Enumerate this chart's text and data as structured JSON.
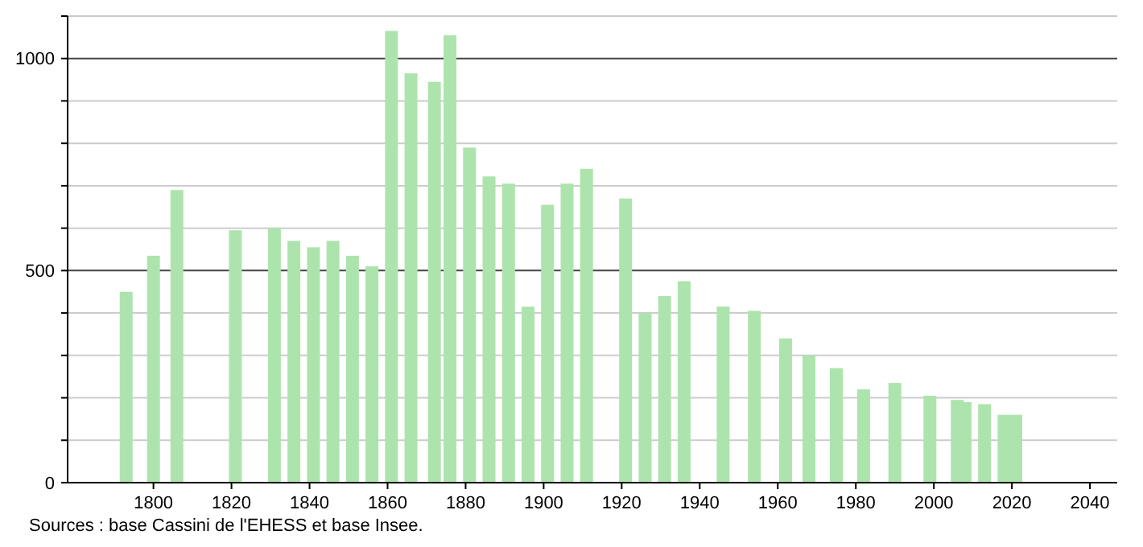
{
  "chart_data": {
    "type": "bar",
    "x": [
      1793,
      1800,
      1806,
      1821,
      1831,
      1836,
      1841,
      1846,
      1851,
      1856,
      1861,
      1866,
      1872,
      1876,
      1881,
      1886,
      1891,
      1896,
      1901,
      1906,
      1911,
      1921,
      1926,
      1931,
      1936,
      1946,
      1954,
      1962,
      1968,
      1975,
      1982,
      1990,
      1999,
      2006,
      2008,
      2013,
      2018,
      2021
    ],
    "values": [
      450,
      535,
      690,
      595,
      600,
      570,
      555,
      570,
      535,
      510,
      1065,
      965,
      945,
      1055,
      790,
      722,
      705,
      415,
      655,
      705,
      740,
      670,
      400,
      440,
      475,
      415,
      405,
      340,
      300,
      270,
      220,
      235,
      205,
      195,
      190,
      185,
      160,
      160
    ],
    "color": "#ade4ad",
    "xlim": [
      1778,
      2047
    ],
    "xticks": [
      1800,
      1820,
      1840,
      1860,
      1880,
      1900,
      1920,
      1940,
      1960,
      1980,
      2000,
      2020,
      2040
    ],
    "ylim": [
      0,
      1100
    ],
    "yticks": [
      0,
      {
        "value": 100,
        "label": null
      },
      {
        "value": 200,
        "label": null
      },
      {
        "value": 300,
        "label": null
      },
      {
        "value": 400,
        "label": null
      },
      500,
      {
        "value": 600,
        "label": null
      },
      {
        "value": 700,
        "label": null
      },
      {
        "value": 800,
        "label": null
      },
      {
        "value": 900,
        "label": null
      },
      1000,
      {
        "value": 1100,
        "label": null
      }
    ],
    "grid": "y",
    "annotations": [
      "Sources : base Cassini de l'EHESS et base Insee."
    ]
  }
}
